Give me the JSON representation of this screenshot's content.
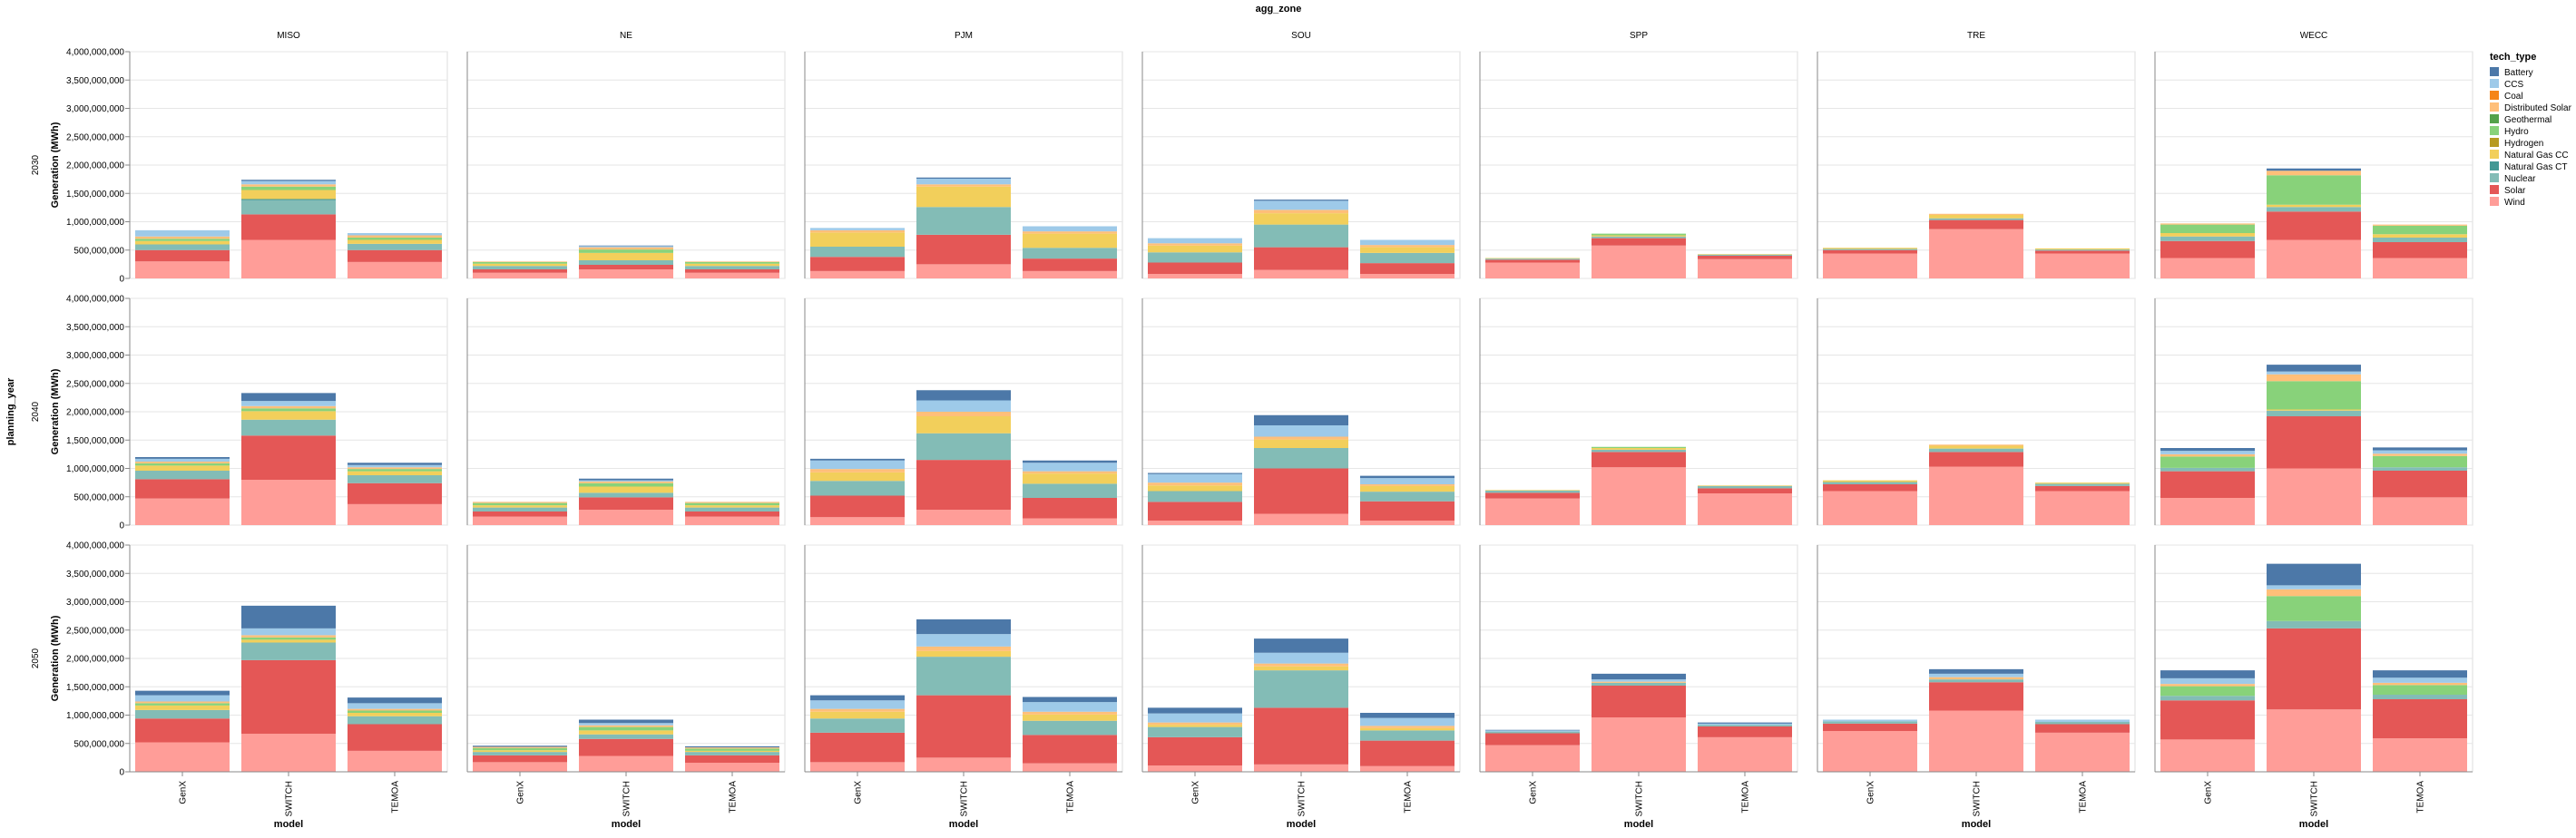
{
  "chart_data": {
    "type": "bar",
    "stacked": true,
    "facet_column_field": "agg_zone",
    "facet_row_field": "planning_year",
    "x_field": "model",
    "ylabel": "Generation (MWh)",
    "xlabel": "model",
    "ylim": [
      0,
      4000000000
    ],
    "y_ticks": [
      "0",
      "500,000,000",
      "1,000,000,000",
      "1,500,000,000",
      "2,000,000,000",
      "2,500,000,000",
      "3,000,000,000",
      "3,500,000,000",
      "4,000,000,000"
    ],
    "y_tick_values": [
      0,
      500000000,
      1000000000,
      1500000000,
      2000000000,
      2500000000,
      3000000000,
      3500000000,
      4000000000
    ],
    "columns": [
      "MISO",
      "NE",
      "PJM",
      "SOU",
      "SPP",
      "TRE",
      "WECC"
    ],
    "rows": [
      "2030",
      "2040",
      "2050"
    ],
    "categories": [
      "GenX",
      "SWITCH",
      "TEMOA"
    ],
    "legend_title": "tech_type",
    "legend_position": "right",
    "grid": true,
    "tech_types": [
      {
        "name": "Battery",
        "color": "#4c78a8"
      },
      {
        "name": "CCS",
        "color": "#9ecae9"
      },
      {
        "name": "Coal",
        "color": "#f58518"
      },
      {
        "name": "Distributed Solar",
        "color": "#ffbf79"
      },
      {
        "name": "Geothermal",
        "color": "#54a24b"
      },
      {
        "name": "Hydro",
        "color": "#88d27a"
      },
      {
        "name": "Hydrogen",
        "color": "#b79a20"
      },
      {
        "name": "Natural Gas CC",
        "color": "#f2cf5b"
      },
      {
        "name": "Natural Gas CT",
        "color": "#439894"
      },
      {
        "name": "Nuclear",
        "color": "#83bcb6"
      },
      {
        "name": "Solar",
        "color": "#e45756"
      },
      {
        "name": "Wind",
        "color": "#ff9d98"
      }
    ],
    "stack_order_bottom_to_top": [
      "Wind",
      "Solar",
      "Nuclear",
      "Natural Gas CT",
      "Natural Gas CC",
      "Hydrogen",
      "Hydro",
      "Geothermal",
      "Distributed Solar",
      "Coal",
      "CCS",
      "Battery"
    ],
    "panels": {
      "2030": {
        "MISO": {
          "GenX": {
            "Wind": 300000000,
            "Solar": 200000000,
            "Nuclear": 100000000,
            "Natural Gas CC": 60000000,
            "Hydro": 40000000,
            "Distributed Solar": 40000000,
            "CCS": 110000000
          },
          "SWITCH": {
            "Wind": 680000000,
            "Solar": 450000000,
            "Nuclear": 250000000,
            "Natural Gas CT": 20000000,
            "Natural Gas CC": 160000000,
            "Hydro": 60000000,
            "Distributed Solar": 40000000,
            "CCS": 60000000,
            "Battery": 20000000
          },
          "TEMOA": {
            "Wind": 290000000,
            "Solar": 210000000,
            "Nuclear": 110000000,
            "Natural Gas CC": 70000000,
            "Hydro": 40000000,
            "Distributed Solar": 40000000,
            "CCS": 40000000
          }
        },
        "NE": {
          "GenX": {
            "Wind": 100000000,
            "Solar": 60000000,
            "Nuclear": 60000000,
            "Natural Gas CC": 40000000,
            "Hydro": 30000000,
            "Distributed Solar": 10000000
          },
          "SWITCH": {
            "Wind": 160000000,
            "Solar": 80000000,
            "Nuclear": 80000000,
            "Natural Gas CC": 130000000,
            "Hydro": 60000000,
            "Distributed Solar": 40000000,
            "CCS": 20000000,
            "Battery": 10000000
          },
          "TEMOA": {
            "Wind": 100000000,
            "Solar": 60000000,
            "Nuclear": 60000000,
            "Natural Gas CC": 40000000,
            "Hydro": 30000000,
            "Distributed Solar": 10000000
          }
        },
        "PJM": {
          "GenX": {
            "Wind": 130000000,
            "Solar": 250000000,
            "Nuclear": 180000000,
            "Natural Gas CC": 250000000,
            "Distributed Solar": 40000000,
            "CCS": 40000000
          },
          "SWITCH": {
            "Wind": 250000000,
            "Solar": 520000000,
            "Nuclear": 490000000,
            "Natural Gas CC": 360000000,
            "Distributed Solar": 40000000,
            "CCS": 100000000,
            "Battery": 20000000
          },
          "TEMOA": {
            "Wind": 130000000,
            "Solar": 220000000,
            "Nuclear": 190000000,
            "Natural Gas CC": 250000000,
            "Distributed Solar": 40000000,
            "CCS": 90000000
          }
        },
        "SOU": {
          "GenX": {
            "Wind": 80000000,
            "Solar": 200000000,
            "Nuclear": 180000000,
            "Natural Gas CC": 120000000,
            "Distributed Solar": 40000000,
            "CCS": 90000000
          },
          "SWITCH": {
            "Wind": 150000000,
            "Solar": 400000000,
            "Nuclear": 400000000,
            "Natural Gas CC": 200000000,
            "Distributed Solar": 60000000,
            "CCS": 160000000,
            "Battery": 20000000
          },
          "TEMOA": {
            "Wind": 80000000,
            "Solar": 190000000,
            "Nuclear": 180000000,
            "Natural Gas CC": 100000000,
            "Distributed Solar": 40000000,
            "CCS": 90000000
          }
        },
        "SPP": {
          "GenX": {
            "Wind": 280000000,
            "Solar": 50000000,
            "Nuclear": 20000000,
            "Natural Gas CC": 10000000
          },
          "SWITCH": {
            "Wind": 580000000,
            "Solar": 130000000,
            "Nuclear": 30000000,
            "Natural Gas CC": 20000000,
            "Hydro": 30000000
          },
          "TEMOA": {
            "Wind": 340000000,
            "Solar": 60000000,
            "Nuclear": 20000000,
            "Natural Gas CC": 10000000
          }
        },
        "TRE": {
          "GenX": {
            "Wind": 440000000,
            "Solar": 60000000,
            "Nuclear": 20000000,
            "Natural Gas CC": 20000000
          },
          "SWITCH": {
            "Wind": 870000000,
            "Solar": 160000000,
            "Nuclear": 30000000,
            "Natural Gas CC": 60000000,
            "Distributed Solar": 20000000
          },
          "TEMOA": {
            "Wind": 440000000,
            "Solar": 50000000,
            "Nuclear": 20000000,
            "Natural Gas CC": 20000000
          }
        },
        "WECC": {
          "GenX": {
            "Wind": 360000000,
            "Solar": 300000000,
            "Nuclear": 80000000,
            "Natural Gas CC": 60000000,
            "Hydro": 150000000,
            "Distributed Solar": 20000000
          },
          "SWITCH": {
            "Wind": 680000000,
            "Solar": 500000000,
            "Nuclear": 80000000,
            "Natural Gas CC": 40000000,
            "Hydro": 520000000,
            "Distributed Solar": 80000000,
            "Battery": 40000000
          },
          "TEMOA": {
            "Wind": 360000000,
            "Solar": 280000000,
            "Nuclear": 80000000,
            "Natural Gas CC": 60000000,
            "Hydro": 150000000,
            "Distributed Solar": 20000000
          }
        }
      },
      "2040": {
        "MISO": {
          "GenX": {
            "Wind": 470000000,
            "Solar": 340000000,
            "Nuclear": 150000000,
            "Natural Gas CC": 90000000,
            "Hydro": 40000000,
            "Distributed Solar": 30000000,
            "CCS": 50000000,
            "Battery": 30000000
          },
          "SWITCH": {
            "Wind": 800000000,
            "Solar": 780000000,
            "Nuclear": 280000000,
            "Natural Gas CC": 150000000,
            "Hydro": 50000000,
            "Distributed Solar": 40000000,
            "CCS": 90000000,
            "Battery": 140000000
          },
          "TEMOA": {
            "Wind": 370000000,
            "Solar": 370000000,
            "Nuclear": 140000000,
            "Natural Gas CC": 70000000,
            "Hydro": 40000000,
            "Distributed Solar": 30000000,
            "CCS": 40000000,
            "Battery": 40000000
          }
        },
        "NE": {
          "GenX": {
            "Wind": 150000000,
            "Solar": 90000000,
            "Nuclear": 70000000,
            "Natural Gas CC": 40000000,
            "Hydro": 40000000,
            "Distributed Solar": 20000000
          },
          "SWITCH": {
            "Wind": 270000000,
            "Solar": 220000000,
            "Nuclear": 80000000,
            "Natural Gas CC": 110000000,
            "Hydro": 60000000,
            "Distributed Solar": 30000000,
            "CCS": 20000000,
            "Battery": 30000000
          },
          "TEMOA": {
            "Wind": 150000000,
            "Solar": 90000000,
            "Nuclear": 70000000,
            "Natural Gas CC": 40000000,
            "Hydro": 40000000,
            "Distributed Solar": 20000000
          }
        },
        "PJM": {
          "GenX": {
            "Wind": 140000000,
            "Solar": 380000000,
            "Nuclear": 260000000,
            "Natural Gas CC": 150000000,
            "Distributed Solar": 60000000,
            "CCS": 150000000,
            "Battery": 30000000
          },
          "SWITCH": {
            "Wind": 270000000,
            "Solar": 880000000,
            "Nuclear": 470000000,
            "Natural Gas CC": 300000000,
            "Distributed Solar": 80000000,
            "CCS": 200000000,
            "Battery": 180000000
          },
          "TEMOA": {
            "Wind": 120000000,
            "Solar": 360000000,
            "Nuclear": 250000000,
            "Natural Gas CC": 180000000,
            "Distributed Solar": 40000000,
            "CCS": 150000000,
            "Battery": 40000000
          }
        },
        "SOU": {
          "GenX": {
            "Wind": 80000000,
            "Solar": 330000000,
            "Nuclear": 190000000,
            "Natural Gas CC": 100000000,
            "Distributed Solar": 50000000,
            "CCS": 150000000,
            "Battery": 20000000
          },
          "SWITCH": {
            "Wind": 200000000,
            "Solar": 800000000,
            "Nuclear": 360000000,
            "Natural Gas CC": 150000000,
            "Distributed Solar": 50000000,
            "CCS": 200000000,
            "Battery": 180000000
          },
          "TEMOA": {
            "Wind": 80000000,
            "Solar": 340000000,
            "Nuclear": 170000000,
            "Natural Gas CC": 100000000,
            "Distributed Solar": 30000000,
            "CCS": 110000000,
            "Battery": 40000000
          }
        },
        "SPP": {
          "GenX": {
            "Wind": 470000000,
            "Solar": 100000000,
            "Nuclear": 40000000,
            "Natural Gas CC": 10000000
          },
          "SWITCH": {
            "Wind": 1020000000,
            "Solar": 270000000,
            "Nuclear": 40000000,
            "Natural Gas CC": 30000000,
            "Hydro": 20000000
          },
          "TEMOA": {
            "Wind": 560000000,
            "Solar": 90000000,
            "Nuclear": 40000000,
            "Natural Gas CC": 10000000
          }
        },
        "TRE": {
          "GenX": {
            "Wind": 600000000,
            "Solar": 120000000,
            "Nuclear": 40000000,
            "Natural Gas CC": 30000000
          },
          "SWITCH": {
            "Wind": 1030000000,
            "Solar": 260000000,
            "Nuclear": 60000000,
            "Natural Gas CC": 50000000,
            "Distributed Solar": 20000000
          },
          "TEMOA": {
            "Wind": 600000000,
            "Solar": 90000000,
            "Nuclear": 40000000,
            "Natural Gas CC": 20000000
          }
        },
        "WECC": {
          "GenX": {
            "Wind": 480000000,
            "Solar": 470000000,
            "Nuclear": 60000000,
            "Hydro": 200000000,
            "Distributed Solar": 40000000,
            "CCS": 60000000,
            "Battery": 50000000
          },
          "SWITCH": {
            "Wind": 1000000000,
            "Solar": 920000000,
            "Nuclear": 100000000,
            "Natural Gas CC": 20000000,
            "Hydro": 500000000,
            "Distributed Solar": 120000000,
            "CCS": 50000000,
            "Battery": 120000000
          },
          "TEMOA": {
            "Wind": 490000000,
            "Solar": 470000000,
            "Nuclear": 60000000,
            "Hydro": 200000000,
            "Distributed Solar": 40000000,
            "CCS": 60000000,
            "Battery": 50000000
          }
        }
      },
      "2050": {
        "MISO": {
          "GenX": {
            "Wind": 520000000,
            "Solar": 420000000,
            "Nuclear": 150000000,
            "Natural Gas CC": 80000000,
            "Hydro": 40000000,
            "Distributed Solar": 30000000,
            "CCS": 110000000,
            "Battery": 80000000
          },
          "SWITCH": {
            "Wind": 670000000,
            "Solar": 1300000000,
            "Nuclear": 310000000,
            "Natural Gas CC": 50000000,
            "Hydro": 40000000,
            "Distributed Solar": 40000000,
            "CCS": 120000000,
            "Battery": 400000000
          },
          "TEMOA": {
            "Wind": 370000000,
            "Solar": 470000000,
            "Nuclear": 140000000,
            "Natural Gas CC": 60000000,
            "Hydro": 40000000,
            "Distributed Solar": 30000000,
            "CCS": 100000000,
            "Battery": 100000000
          }
        },
        "NE": {
          "GenX": {
            "Wind": 170000000,
            "Solar": 120000000,
            "Nuclear": 60000000,
            "Natural Gas CC": 30000000,
            "Hydro": 40000000,
            "Distributed Solar": 20000000,
            "Battery": 20000000
          },
          "SWITCH": {
            "Wind": 280000000,
            "Solar": 300000000,
            "Nuclear": 80000000,
            "Natural Gas CC": 70000000,
            "Hydro": 60000000,
            "Distributed Solar": 30000000,
            "CCS": 40000000,
            "Battery": 60000000
          },
          "TEMOA": {
            "Wind": 160000000,
            "Solar": 130000000,
            "Nuclear": 60000000,
            "Natural Gas CC": 20000000,
            "Hydro": 40000000,
            "Distributed Solar": 20000000,
            "Battery": 20000000
          }
        },
        "PJM": {
          "GenX": {
            "Wind": 170000000,
            "Solar": 520000000,
            "Nuclear": 250000000,
            "Natural Gas CC": 120000000,
            "Distributed Solar": 50000000,
            "CCS": 150000000,
            "Battery": 90000000
          },
          "SWITCH": {
            "Wind": 250000000,
            "Solar": 1100000000,
            "Nuclear": 680000000,
            "Natural Gas CC": 100000000,
            "Distributed Solar": 80000000,
            "CCS": 220000000,
            "Battery": 260000000
          },
          "TEMOA": {
            "Wind": 150000000,
            "Solar": 500000000,
            "Nuclear": 250000000,
            "Natural Gas CC": 110000000,
            "Distributed Solar": 50000000,
            "CCS": 170000000,
            "Battery": 90000000
          }
        },
        "SOU": {
          "GenX": {
            "Wind": 110000000,
            "Solar": 500000000,
            "Nuclear": 180000000,
            "Natural Gas CC": 40000000,
            "Distributed Solar": 40000000,
            "CCS": 160000000,
            "Battery": 100000000
          },
          "SWITCH": {
            "Wind": 130000000,
            "Solar": 1000000000,
            "Nuclear": 660000000,
            "Natural Gas CC": 70000000,
            "Distributed Solar": 50000000,
            "CCS": 190000000,
            "Battery": 250000000
          },
          "TEMOA": {
            "Wind": 100000000,
            "Solar": 450000000,
            "Nuclear": 180000000,
            "Natural Gas CC": 40000000,
            "Distributed Solar": 40000000,
            "CCS": 140000000,
            "Battery": 90000000
          }
        },
        "SPP": {
          "GenX": {
            "Wind": 470000000,
            "Solar": 210000000,
            "Nuclear": 30000000,
            "CCS": 20000000,
            "Battery": 10000000
          },
          "SWITCH": {
            "Wind": 960000000,
            "Solar": 560000000,
            "Nuclear": 50000000,
            "Distributed Solar": 20000000,
            "CCS": 40000000,
            "Battery": 100000000
          },
          "TEMOA": {
            "Wind": 610000000,
            "Solar": 190000000,
            "Nuclear": 30000000,
            "CCS": 20000000,
            "Battery": 20000000
          }
        },
        "TRE": {
          "GenX": {
            "Wind": 720000000,
            "Solar": 130000000,
            "Nuclear": 40000000,
            "CCS": 30000000
          },
          "SWITCH": {
            "Wind": 1080000000,
            "Solar": 500000000,
            "Nuclear": 50000000,
            "Distributed Solar": 40000000,
            "CCS": 60000000,
            "Battery": 80000000
          },
          "TEMOA": {
            "Wind": 690000000,
            "Solar": 150000000,
            "Nuclear": 40000000,
            "CCS": 40000000
          }
        },
        "WECC": {
          "GenX": {
            "Wind": 570000000,
            "Solar": 690000000,
            "Nuclear": 80000000,
            "Hydro": 170000000,
            "Distributed Solar": 40000000,
            "CCS": 100000000,
            "Battery": 140000000
          },
          "SWITCH": {
            "Wind": 1100000000,
            "Solar": 1430000000,
            "Nuclear": 130000000,
            "Hydro": 440000000,
            "Distributed Solar": 120000000,
            "CCS": 70000000,
            "Battery": 380000000
          },
          "TEMOA": {
            "Wind": 590000000,
            "Solar": 690000000,
            "Nuclear": 80000000,
            "Hydro": 170000000,
            "Distributed Solar": 40000000,
            "CCS": 90000000,
            "Battery": 130000000
          }
        }
      }
    }
  }
}
